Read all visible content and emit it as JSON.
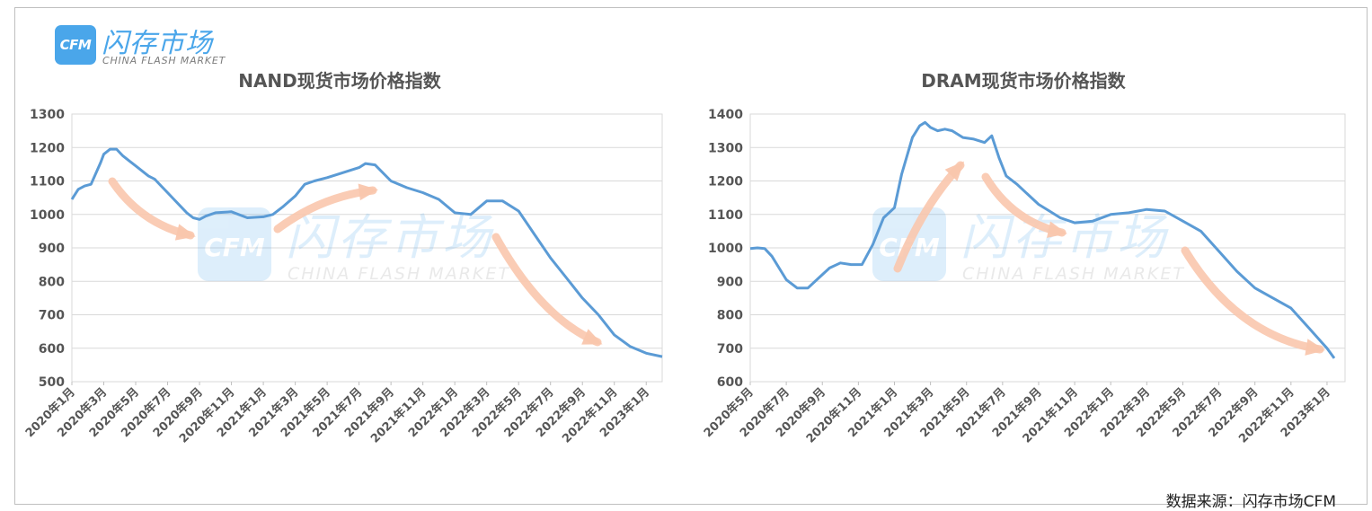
{
  "logo": {
    "badge_text": "CFM",
    "name_cn": "闪存市场",
    "name_en": "CHINA FLASH MARKET"
  },
  "source": "数据来源：闪存市场CFM",
  "colors": {
    "line": "#5b9bd5",
    "arrow": "#f9c6ad",
    "grid": "#d9d9d9",
    "watermark": "#4aa6ea"
  },
  "chart_data": [
    {
      "type": "line",
      "title": "NAND现货市场价格指数",
      "ylim": [
        500,
        1300
      ],
      "yticks": [
        500,
        600,
        700,
        800,
        900,
        1000,
        1100,
        1200,
        1300
      ],
      "grid": true,
      "xlabels": [
        "2020年1月",
        "2020年3月",
        "2020年5月",
        "2020年7月",
        "2020年9月",
        "2020年11月",
        "2021年1月",
        "2021年3月",
        "2021年5月",
        "2021年7月",
        "2021年9月",
        "2021年11月",
        "2022年1月",
        "2022年3月",
        "2022年5月",
        "2022年7月",
        "2022年9月",
        "2022年11月",
        "2023年1月"
      ],
      "series": [
        {
          "x": [
            0,
            0.2,
            0.4,
            0.6,
            0.9,
            1.0,
            1.2,
            1.4,
            1.6,
            1.8,
            2.0,
            2.2,
            2.4,
            2.6,
            2.8,
            3.0,
            3.2,
            3.4,
            3.6,
            3.8,
            4.0,
            4.2,
            4.5,
            5.0,
            5.5,
            6.0,
            6.3,
            6.6,
            7.0,
            7.3,
            7.6,
            8.0,
            8.5,
            9.0,
            9.2,
            9.5,
            10.0,
            10.5,
            11.0,
            11.5,
            12.0,
            12.5,
            13.0,
            13.5,
            14.0,
            14.5,
            15.0,
            15.5,
            16.0,
            16.5,
            17.0,
            17.5,
            18.0,
            18.5
          ],
          "values": [
            1045,
            1075,
            1085,
            1090,
            1155,
            1180,
            1195,
            1195,
            1175,
            1160,
            1145,
            1130,
            1115,
            1105,
            1085,
            1065,
            1045,
            1025,
            1005,
            990,
            985,
            995,
            1005,
            1008,
            990,
            993,
            1000,
            1022,
            1055,
            1090,
            1100,
            1110,
            1125,
            1140,
            1152,
            1148,
            1100,
            1080,
            1065,
            1045,
            1005,
            1000,
            1040,
            1040,
            1010,
            940,
            870,
            810,
            750,
            700,
            640,
            605,
            585,
            575
          ]
        }
      ]
    },
    {
      "type": "line",
      "title": "DRAM现货市场价格指数",
      "ylim": [
        600,
        1400
      ],
      "yticks": [
        600,
        700,
        800,
        900,
        1000,
        1100,
        1200,
        1300,
        1400
      ],
      "grid": true,
      "xlabels": [
        "2020年5月",
        "2020年7月",
        "2020年9月",
        "2020年11月",
        "2021年1月",
        "2021年3月",
        "2021年5月",
        "2021年7月",
        "2021年9月",
        "2021年11月",
        "2022年1月",
        "2022年3月",
        "2022年5月",
        "2022年7月",
        "2022年9月",
        "2022年11月",
        "2023年1月"
      ],
      "series": [
        {
          "x": [
            0,
            0.2,
            0.4,
            0.6,
            0.8,
            1.0,
            1.3,
            1.6,
            1.9,
            2.2,
            2.5,
            2.8,
            3.1,
            3.4,
            3.7,
            4.0,
            4.2,
            4.5,
            4.7,
            4.85,
            5.0,
            5.2,
            5.4,
            5.6,
            5.9,
            6.2,
            6.5,
            6.7,
            6.9,
            7.1,
            7.4,
            7.7,
            8.0,
            8.3,
            8.6,
            9.0,
            9.5,
            10.0,
            10.5,
            11.0,
            11.5,
            12.0,
            12.5,
            13.0,
            13.5,
            14.0,
            14.5,
            15.0,
            15.5,
            16.0,
            16.2
          ],
          "values": [
            998,
            1000,
            998,
            975,
            940,
            905,
            880,
            880,
            910,
            940,
            955,
            950,
            950,
            1010,
            1090,
            1120,
            1220,
            1330,
            1365,
            1375,
            1360,
            1350,
            1355,
            1350,
            1330,
            1325,
            1315,
            1335,
            1270,
            1215,
            1190,
            1160,
            1130,
            1110,
            1090,
            1075,
            1080,
            1100,
            1105,
            1115,
            1110,
            1080,
            1050,
            990,
            930,
            880,
            850,
            820,
            760,
            700,
            670
          ]
        }
      ]
    }
  ]
}
